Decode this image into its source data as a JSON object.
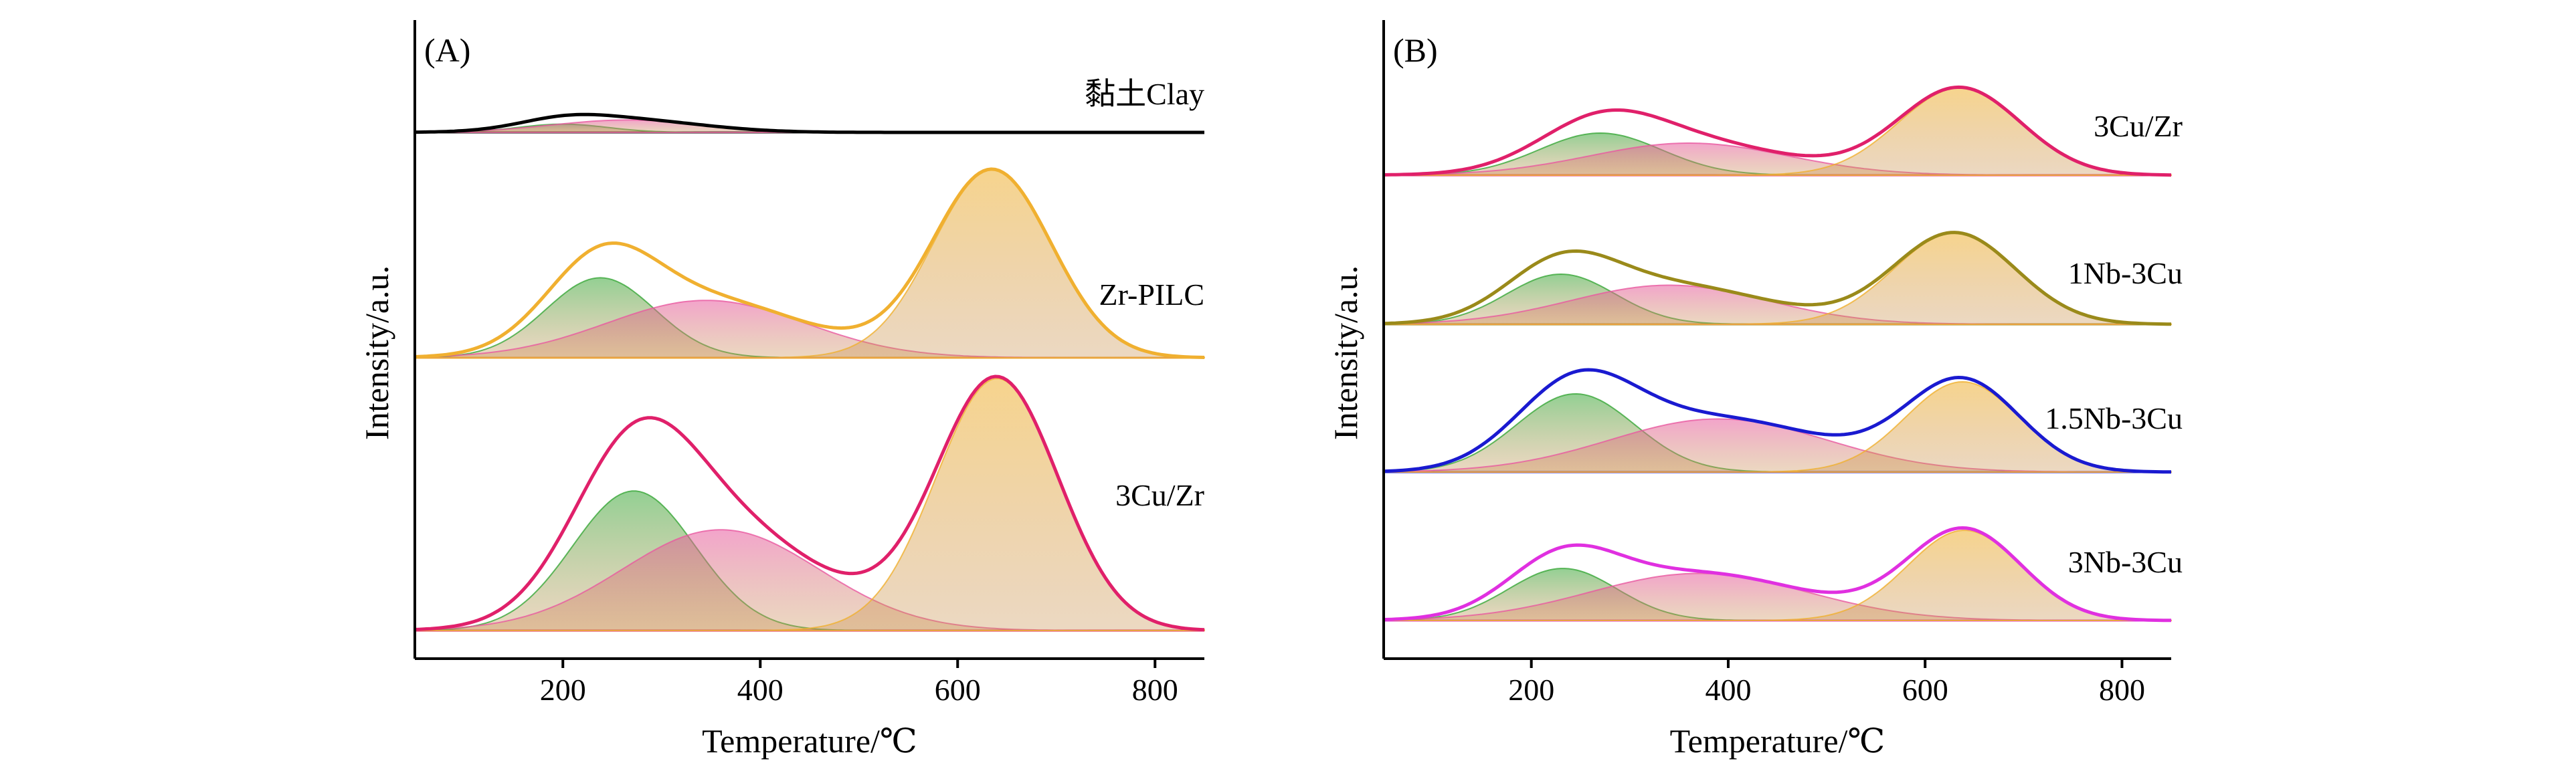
{
  "chart_data": [
    {
      "type": "area",
      "panel_label": "(A)",
      "xlabel": "Temperature/℃",
      "ylabel": "Intensity/a.u.",
      "xlim": [
        50,
        850
      ],
      "xticks": [
        200,
        400,
        600,
        800
      ],
      "yticks": false,
      "grid": false,
      "legend": "none",
      "samples": [
        {
          "label": "黏土Clay",
          "envelope_color": "#000000",
          "peaks": [
            {
              "center": 200,
              "width": 45,
              "height": 0.08,
              "color": "#3aa83a"
            },
            {
              "center": 265,
              "width": 75,
              "height": 0.12,
              "color": "#e85aa0"
            }
          ]
        },
        {
          "label": "Zr-PILC",
          "envelope_color": "#f0b030",
          "peaks": [
            {
              "center": 238,
              "width": 55,
              "height": 0.46,
              "color": "#3aa83a"
            },
            {
              "center": 345,
              "width": 100,
              "height": 0.33,
              "color": "#e85aa0"
            },
            {
              "center": 635,
              "width": 60,
              "height": 1.08,
              "color": "#f0b030"
            }
          ]
        },
        {
          "label": "3Cu/Zr",
          "envelope_color": "#e0206a",
          "peaks": [
            {
              "center": 272,
              "width": 62,
              "height": 0.72,
              "color": "#3aa83a"
            },
            {
              "center": 360,
              "width": 100,
              "height": 0.52,
              "color": "#e85aa0"
            },
            {
              "center": 640,
              "width": 62,
              "height": 1.3,
              "color": "#f0b030"
            }
          ]
        }
      ]
    },
    {
      "type": "area",
      "panel_label": "(B)",
      "xlabel": "Temperature/℃",
      "ylabel": "Intensity/a.u.",
      "xlim": [
        50,
        850
      ],
      "xticks": [
        200,
        400,
        600,
        800
      ],
      "yticks": false,
      "grid": false,
      "legend": "none",
      "samples": [
        {
          "label": "3Cu/Zr",
          "envelope_color": "#e0206a",
          "peaks": [
            {
              "center": 270,
              "width": 62,
              "height": 0.42,
              "color": "#3aa83a"
            },
            {
              "center": 360,
              "width": 100,
              "height": 0.32,
              "color": "#e85aa0"
            },
            {
              "center": 635,
              "width": 62,
              "height": 0.87,
              "color": "#f0b030"
            }
          ]
        },
        {
          "label": "1Nb-3Cu",
          "envelope_color": "#9a8a1a",
          "peaks": [
            {
              "center": 230,
              "width": 55,
              "height": 0.5,
              "color": "#3aa83a"
            },
            {
              "center": 340,
              "width": 100,
              "height": 0.39,
              "color": "#e85aa0"
            },
            {
              "center": 630,
              "width": 62,
              "height": 0.91,
              "color": "#f0b030"
            }
          ]
        },
        {
          "label": "1.5Nb-3Cu",
          "envelope_color": "#1a1ad0",
          "peaks": [
            {
              "center": 245,
              "width": 60,
              "height": 0.78,
              "color": "#3aa83a"
            },
            {
              "center": 390,
              "width": 110,
              "height": 0.53,
              "color": "#e85aa0"
            },
            {
              "center": 638,
              "width": 58,
              "height": 0.9,
              "color": "#f0b030"
            }
          ]
        },
        {
          "label": "3Nb-3Cu",
          "envelope_color": "#e030e0",
          "peaks": [
            {
              "center": 232,
              "width": 55,
              "height": 0.52,
              "color": "#3aa83a"
            },
            {
              "center": 370,
              "width": 110,
              "height": 0.47,
              "color": "#e85aa0"
            },
            {
              "center": 640,
              "width": 58,
              "height": 0.9,
              "color": "#f0b030"
            }
          ]
        }
      ]
    }
  ]
}
